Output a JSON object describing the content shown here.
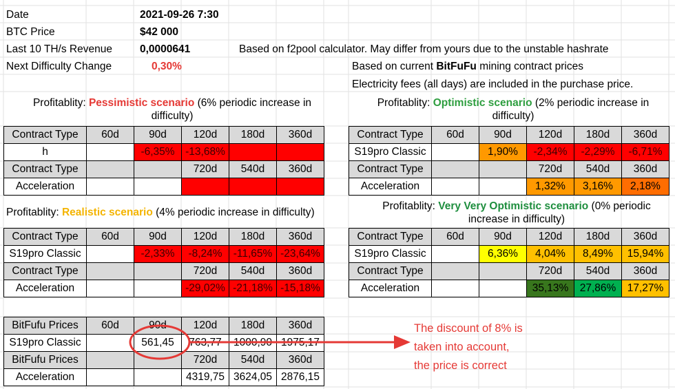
{
  "colors": {
    "header_gray": "#d9d9d9",
    "neg_red": "#ff0000",
    "orange": "#ff9900",
    "dark_orange": "#ff6d01",
    "amber": "#ffc000",
    "yellow": "#ffff00",
    "light_green": "#93c47d",
    "green": "#00b050",
    "dark_green": "#38761d",
    "pessimistic": "#e53935",
    "optimistic": "#2e9e3f",
    "realistic": "#f4b400",
    "very_optimistic": "#1e8e3e",
    "note": "#e53935"
  },
  "info": {
    "date_label": "Date",
    "date_value": "2021-09-26 7:30",
    "btc_label": "BTC Price",
    "btc_value": "$42 000",
    "revenue_label": "Last 10 TH/s Revenue",
    "revenue_value": "0,0000641",
    "revenue_note": "Based on f2pool calculator. May differ from yours due to the unstable hashrate",
    "difficulty_label": "Next Difficulty Change",
    "difficulty_value": "0,30%",
    "contract_note_prefix": "Based on current ",
    "contract_note_brand": "BitFuFu",
    "contract_note_suffix": " mining contract prices",
    "electricity_note": "Electricity fees (all days) are included in the purchase price."
  },
  "pessimistic": {
    "title_prefix": "Profitablity: ",
    "title_name": "Pessimistic scenario",
    "title_suffix": " (6% periodic increase in difficulty)",
    "rows": [
      [
        "Contract Type",
        "60d",
        "90d",
        "120d",
        "180d",
        "360d"
      ],
      [
        "h",
        "",
        "-6,35%",
        "-13,68%",
        "",
        ""
      ],
      [
        "Contract Type",
        "",
        "",
        "720d",
        "540d",
        "360d"
      ],
      [
        "Acceleration",
        "",
        "",
        "",
        "",
        ""
      ]
    ]
  },
  "optimistic": {
    "title_prefix": "Profitablity: ",
    "title_name": "Optimistic scenario",
    "title_suffix": " (2% periodic increase in difficulty)",
    "rows": [
      [
        "Contract Type",
        "60d",
        "90d",
        "120d",
        "180d",
        "360d"
      ],
      [
        "S19pro Classic",
        "",
        "1,90%",
        "-2,34%",
        "-2,29%",
        "-6,71%"
      ],
      [
        "Contract Type",
        "",
        "",
        "720d",
        "540d",
        "360d"
      ],
      [
        "Acceleration",
        "",
        "",
        "1,32%",
        "3,16%",
        "2,18%"
      ]
    ]
  },
  "realistic": {
    "title_prefix": "Profitablity: ",
    "title_name": "Realistic scenario",
    "title_suffix": " (4% periodic increase in difficulty)",
    "rows": [
      [
        "Contract Type",
        "60d",
        "90d",
        "120d",
        "180d",
        "360d"
      ],
      [
        "S19pro Classic",
        "",
        "-2,33%",
        "-8,24%",
        "-11,65%",
        "-23,64%"
      ],
      [
        "Contract Type",
        "",
        "",
        "720d",
        "540d",
        "360d"
      ],
      [
        "Acceleration",
        "",
        "",
        "-29,02%",
        "-21,18%",
        "-15,18%"
      ]
    ]
  },
  "very_optimistic": {
    "title_prefix": "Profitablity: ",
    "title_name": "Very Very Optimistic scenario",
    "title_suffix": " (0% periodic increase in difficulty)",
    "rows": [
      [
        "Contract Type",
        "60d",
        "90d",
        "120d",
        "180d",
        "360d"
      ],
      [
        "S19pro Classic",
        "",
        "6,36%",
        "4,04%",
        "8,49%",
        "15,94%"
      ],
      [
        "Contract Type",
        "",
        "",
        "720d",
        "540d",
        "360d"
      ],
      [
        "Acceleration",
        "",
        "",
        "35,13%",
        "27,86%",
        "17,27%"
      ]
    ]
  },
  "prices": {
    "rows": [
      [
        "BitFufu Prices",
        "60d",
        "90d",
        "120d",
        "180d",
        "360d"
      ],
      [
        "S19pro Classic",
        "",
        "561,45",
        "763,77",
        "1000,90",
        "1975,17"
      ],
      [
        "BitFufu Prices",
        "",
        "",
        "720d",
        "540d",
        "360d"
      ],
      [
        "Acceleration",
        "",
        "",
        "4319,75",
        "3624,05",
        "2876,15"
      ]
    ]
  },
  "annotation": {
    "line1": "The discount of 8% is",
    "line2": "taken into account,",
    "line3": "the price is correct"
  }
}
